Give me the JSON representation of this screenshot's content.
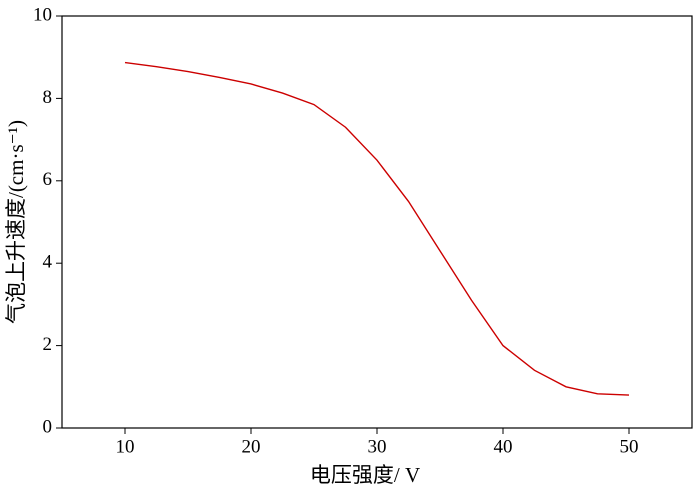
{
  "chart_data": {
    "type": "line",
    "x_label": "电压强度/ V",
    "y_label": "气泡上升速度/(cm·s⁻¹)",
    "x": [
      10,
      12.5,
      15,
      17.5,
      20,
      22.5,
      25,
      27.5,
      30,
      32.5,
      35,
      37.5,
      40,
      42.5,
      45,
      47.5,
      50
    ],
    "series": [
      {
        "color": "#cc0000",
        "values": [
          8.87,
          8.77,
          8.65,
          8.51,
          8.35,
          8.13,
          7.85,
          7.3,
          6.5,
          5.5,
          4.3,
          3.1,
          2.0,
          1.4,
          1.0,
          0.83,
          0.8
        ]
      }
    ],
    "xlim": [
      5,
      55
    ],
    "xticks": [
      10,
      20,
      30,
      40,
      50
    ],
    "ylim": [
      0,
      10
    ],
    "yticks": [
      0,
      2,
      4,
      6,
      8,
      10
    ]
  }
}
